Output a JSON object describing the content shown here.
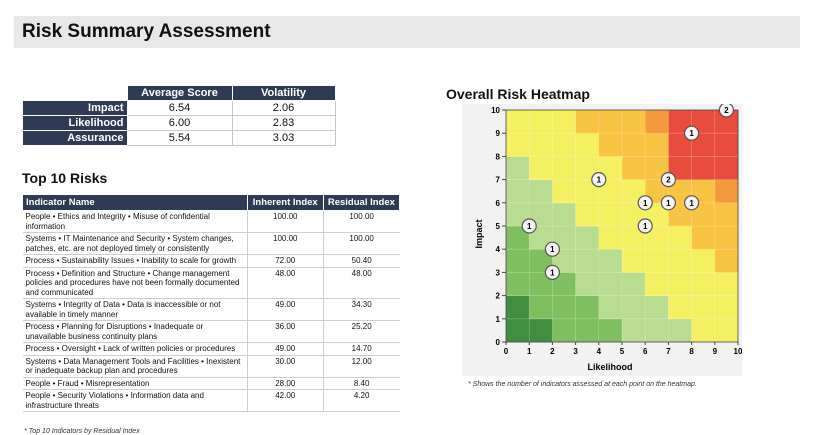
{
  "page": {
    "title": "Risk Summary Assessment"
  },
  "summary": {
    "headers": [
      "Average Score",
      "Volatility"
    ],
    "rows": [
      {
        "label": "Impact",
        "average": "6.54",
        "volatility": "2.06"
      },
      {
        "label": "Likelihood",
        "average": "6.00",
        "volatility": "2.83"
      },
      {
        "label": "Assurance",
        "average": "5.54",
        "volatility": "3.03"
      }
    ]
  },
  "top_risks": {
    "title": "Top 10 Risks",
    "headers": [
      "Indicator Name",
      "Inherent Index",
      "Residual Index"
    ],
    "rows": [
      {
        "name": "People • Ethics and Integrity • Misuse of confidential information",
        "inherent": "100.00",
        "residual": "100.00"
      },
      {
        "name": "Systems • IT Maintenance and Security • System changes, patches, etc. are not deployed timely or consistently",
        "inherent": "100.00",
        "residual": "100.00"
      },
      {
        "name": "Process • Sustainability Issues • Inability to scale for growth",
        "inherent": "72.00",
        "residual": "50.40"
      },
      {
        "name": "Process • Definition and Structure • Change management policies and procedures have not been formally documented and communicated",
        "inherent": "48.00",
        "residual": "48.00"
      },
      {
        "name": "Systems • Integrity of Data • Data is inaccessible or not available in timely manner",
        "inherent": "49.00",
        "residual": "34.30"
      },
      {
        "name": "Process • Planning for Disruptions • Inadequate or unavailable business continuity plans",
        "inherent": "36.00",
        "residual": "25.20"
      },
      {
        "name": "Process • Oversight • Lack of written policies or procedures",
        "inherent": "49.00",
        "residual": "14.70"
      },
      {
        "name": "Systems • Data Management Tools and Facilities • Inexistent or inadequate backup plan and procedures",
        "inherent": "30.00",
        "residual": "12.00"
      },
      {
        "name": "People • Fraud • Misrepresentation",
        "inherent": "28.00",
        "residual": "8.40"
      },
      {
        "name": "People • Security Violations • Information data and infrastructure threats",
        "inherent": "42.00",
        "residual": "4.20"
      }
    ],
    "footnote": "* Top 10 Indicators by Residual Index"
  },
  "heatmap": {
    "title": "Overall Risk Heatmap",
    "footnote": "* Shows the number of indicators assessed at each point on the heatmap."
  },
  "chart_data": {
    "type": "heatmap",
    "title": "Overall Risk Heatmap",
    "xlabel": "Likelihood",
    "ylabel": "Impact",
    "xlim": [
      0,
      10
    ],
    "ylim": [
      0,
      10
    ],
    "x_ticks": [
      "0",
      "1",
      "2",
      "3",
      "4",
      "5",
      "6",
      "7",
      "8",
      "9",
      "10"
    ],
    "y_ticks": [
      "0",
      "1",
      "2",
      "3",
      "4",
      "5",
      "6",
      "7",
      "8",
      "9",
      "10"
    ],
    "zone_colors": [
      "#3f8f3f",
      "#7fbf5f",
      "#b8dc90",
      "#f5f062",
      "#f7c443",
      "#f39a3c",
      "#e84c3c"
    ],
    "points": [
      {
        "x": 9.5,
        "y": 10,
        "count": "2"
      },
      {
        "x": 8,
        "y": 9,
        "count": "1"
      },
      {
        "x": 4,
        "y": 7,
        "count": "1"
      },
      {
        "x": 7,
        "y": 7,
        "count": "2"
      },
      {
        "x": 6,
        "y": 6,
        "count": "1"
      },
      {
        "x": 7,
        "y": 6,
        "count": "1"
      },
      {
        "x": 8,
        "y": 6,
        "count": "1"
      },
      {
        "x": 1,
        "y": 5,
        "count": "1"
      },
      {
        "x": 6,
        "y": 5,
        "count": "1"
      },
      {
        "x": 2,
        "y": 4,
        "count": "1"
      },
      {
        "x": 2,
        "y": 3,
        "count": "1"
      }
    ]
  }
}
